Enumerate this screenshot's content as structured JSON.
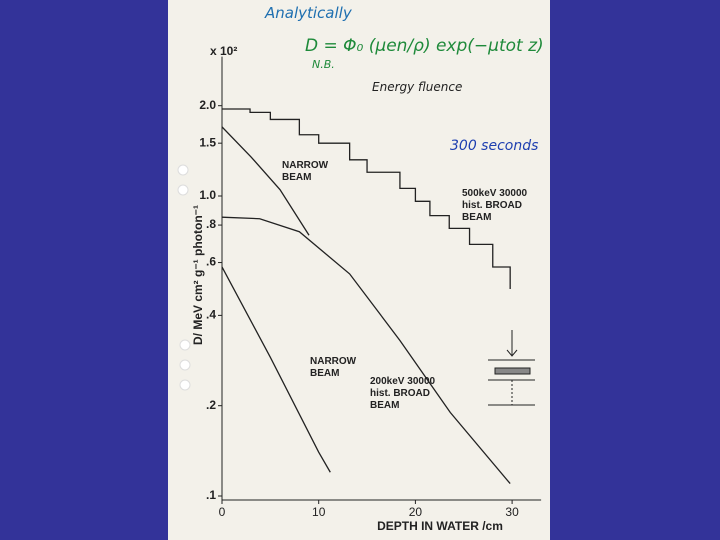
{
  "chart_data": {
    "type": "line",
    "y_axis_label": "D/ MeV cm² g⁻¹ photon⁻¹",
    "x_axis_label": "DEPTH IN WATER /cm",
    "y_multiplier": "x 10²",
    "log_y": true,
    "xlim": [
      0,
      33
    ],
    "xticks": [
      0,
      10,
      20,
      30
    ],
    "ylim": [
      0.1,
      2.5
    ],
    "yticks": [
      {
        "value": 0.1,
        "label": ".1"
      },
      {
        "value": 0.2,
        "label": ".2"
      },
      {
        "value": 0.4,
        "label": ".4"
      },
      {
        "value": 0.6,
        "label": ".6"
      },
      {
        "value": 0.8,
        "label": ".8"
      },
      {
        "value": 1.0,
        "label": "1.0"
      },
      {
        "value": 1.5,
        "label": "1.5"
      },
      {
        "value": 2.0,
        "label": "2.0"
      }
    ],
    "series": [
      {
        "name": "500keV 30000 hist. BROAD BEAM",
        "color": "#222222",
        "step": true,
        "x": [
          0,
          2.9,
          5,
          8,
          10,
          13.2,
          15,
          18.4,
          20,
          21.5,
          23.5,
          25.6,
          28,
          29.8
        ],
        "values": [
          1.95,
          1.9,
          1.8,
          1.6,
          1.5,
          1.32,
          1.2,
          1.06,
          0.96,
          0.86,
          0.78,
          0.69,
          0.58,
          0.49
        ]
      },
      {
        "name": "NARROW BEAM",
        "color": "#222222",
        "step": false,
        "x": [
          0,
          3,
          6,
          9
        ],
        "values": [
          1.7,
          1.35,
          1.05,
          0.74
        ]
      },
      {
        "name": "200keV 30000 hist. BROAD BEAM",
        "color": "#222222",
        "step": false,
        "x": [
          0,
          3.9,
          8,
          13.2,
          18.4,
          23.6,
          29.8
        ],
        "values": [
          0.85,
          0.84,
          0.76,
          0.55,
          0.33,
          0.19,
          0.11
        ]
      },
      {
        "name": "NARROW BEAM",
        "color": "#222222",
        "step": false,
        "x": [
          0,
          5,
          10,
          11.2
        ],
        "values": [
          0.58,
          0.29,
          0.14,
          0.12
        ]
      }
    ],
    "annotations": [
      "Analytically",
      "D = Φ₀ (μen/ρ) exp(−μtot z)",
      "N.B.",
      "Energy fluence",
      "300 seconds"
    ]
  }
}
